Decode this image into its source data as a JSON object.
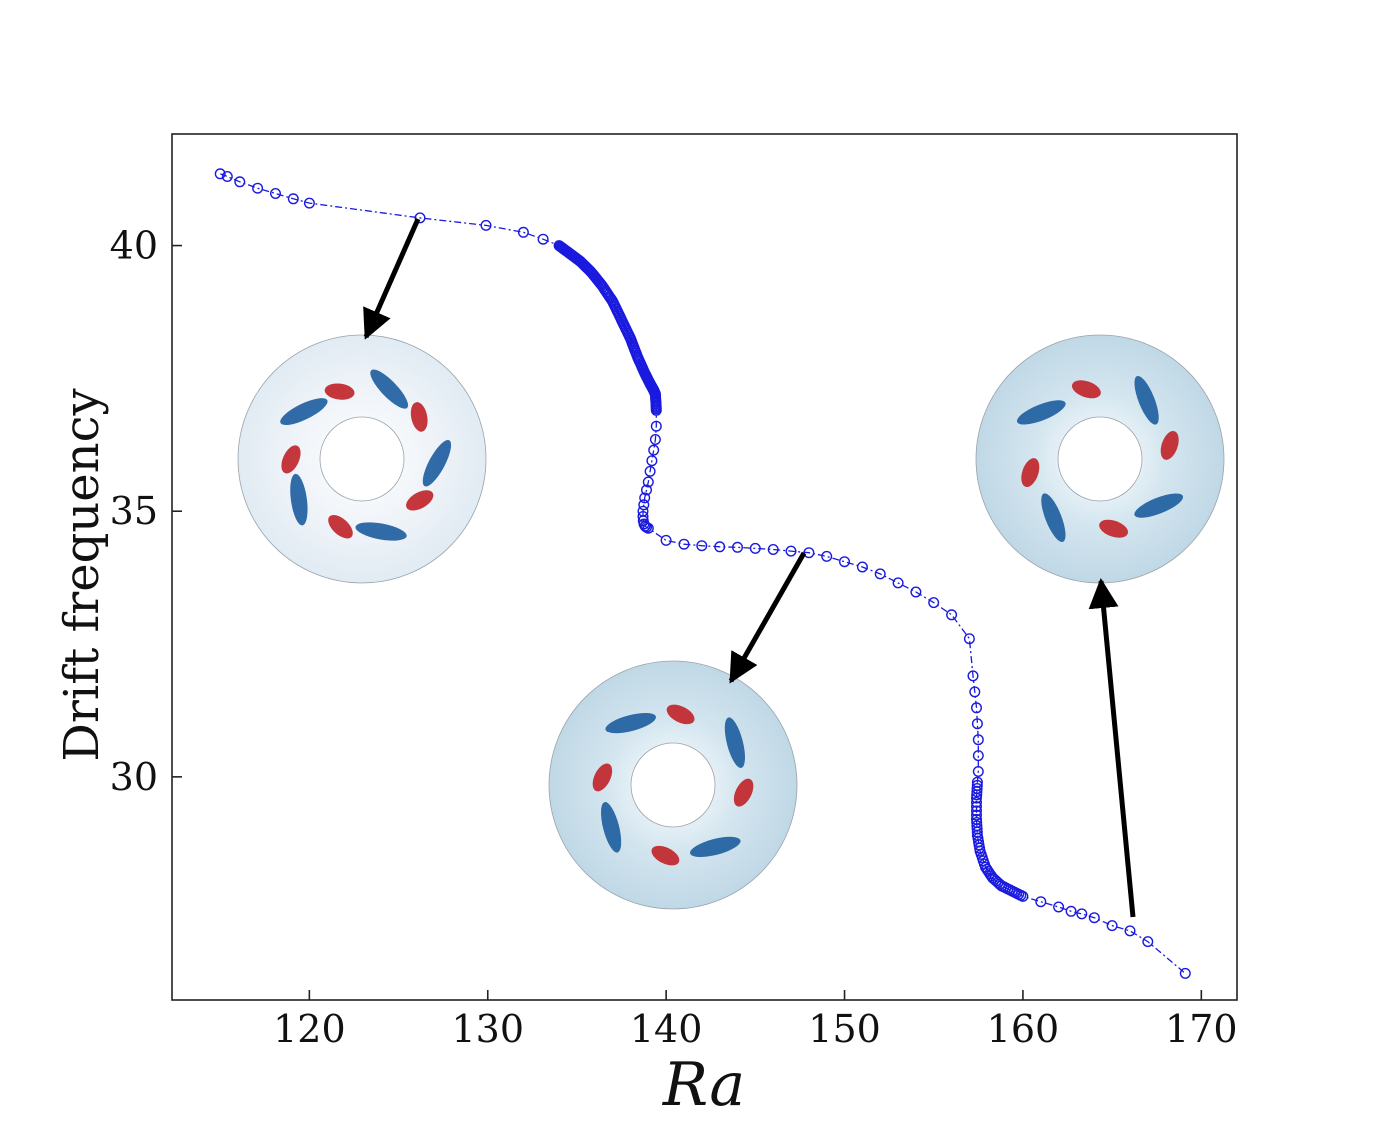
{
  "chart_data": {
    "type": "scatter",
    "title": "",
    "xlabel": "Ra",
    "ylabel": "Drift frequency",
    "xlim": [
      112.3,
      172.0
    ],
    "ylim": [
      25.8,
      42.1
    ],
    "xticks": [
      120,
      130,
      140,
      150,
      160,
      170
    ],
    "yticks": [
      30,
      35,
      40
    ],
    "xtick_labels": [
      "120",
      "130",
      "140",
      "150",
      "160",
      "170"
    ],
    "ytick_labels": [
      "30",
      "35",
      "40"
    ],
    "grid": false,
    "legend": "none",
    "marker": "open-circle",
    "linestyle": "dash-dot",
    "colors": {
      "series": "#1a1adf",
      "arrow": "#000000",
      "annulus_background_light": "#e3edf5",
      "annulus_background_dark": "#c4dce9",
      "cell_red": "#c0262b",
      "cell_blue": "#1f5f9f"
    },
    "series": [
      {
        "x": [
          115.0,
          115.4,
          116.1,
          117.1,
          118.1,
          119.1,
          120.0,
          126.2,
          129.9,
          132.0,
          133.1,
          134.0,
          134.6,
          135.2,
          135.8,
          136.4,
          137.0,
          137.5,
          138.0,
          138.4,
          138.8,
          139.1,
          139.3,
          139.4,
          139.45,
          139.45,
          139.4,
          139.3,
          139.2,
          139.1,
          139.0,
          138.9,
          138.8,
          138.75,
          138.7,
          138.7,
          138.72,
          138.76,
          138.82,
          138.9,
          139.0,
          140.0,
          141.0,
          142.0,
          143.0,
          144.0,
          145.0,
          146.0,
          147.0,
          148.0,
          149.0,
          150.0,
          151.0,
          152.0,
          153.0,
          154.0,
          155.0,
          156.0,
          157.0,
          157.2,
          157.3,
          157.4,
          157.45,
          157.5,
          157.5,
          157.5,
          157.45,
          157.4,
          157.4,
          157.45,
          157.6,
          157.9,
          158.3,
          158.8,
          159.4,
          160.0,
          161.0,
          162.0,
          162.7,
          163.3,
          164.0,
          165.0,
          166.0,
          167.0,
          169.1
        ],
        "y": [
          41.35,
          41.3,
          41.2,
          41.08,
          40.98,
          40.88,
          40.8,
          40.52,
          40.38,
          40.25,
          40.12,
          40.0,
          39.85,
          39.7,
          39.5,
          39.25,
          38.95,
          38.6,
          38.25,
          37.9,
          37.6,
          37.4,
          37.28,
          37.2,
          36.9,
          36.6,
          36.35,
          36.15,
          35.95,
          35.75,
          35.55,
          35.4,
          35.25,
          35.12,
          35.0,
          34.9,
          34.82,
          34.76,
          34.72,
          34.7,
          34.68,
          34.45,
          34.38,
          34.35,
          34.33,
          34.32,
          34.3,
          34.28,
          34.25,
          34.22,
          34.15,
          34.05,
          33.95,
          33.82,
          33.65,
          33.48,
          33.28,
          33.05,
          32.6,
          31.9,
          31.6,
          31.3,
          31.0,
          30.7,
          30.4,
          30.1,
          29.9,
          29.6,
          29.2,
          28.9,
          28.6,
          28.3,
          28.1,
          27.95,
          27.85,
          27.75,
          27.65,
          27.55,
          27.47,
          27.42,
          27.35,
          27.2,
          27.1,
          26.9,
          26.3
        ]
      }
    ]
  }
}
